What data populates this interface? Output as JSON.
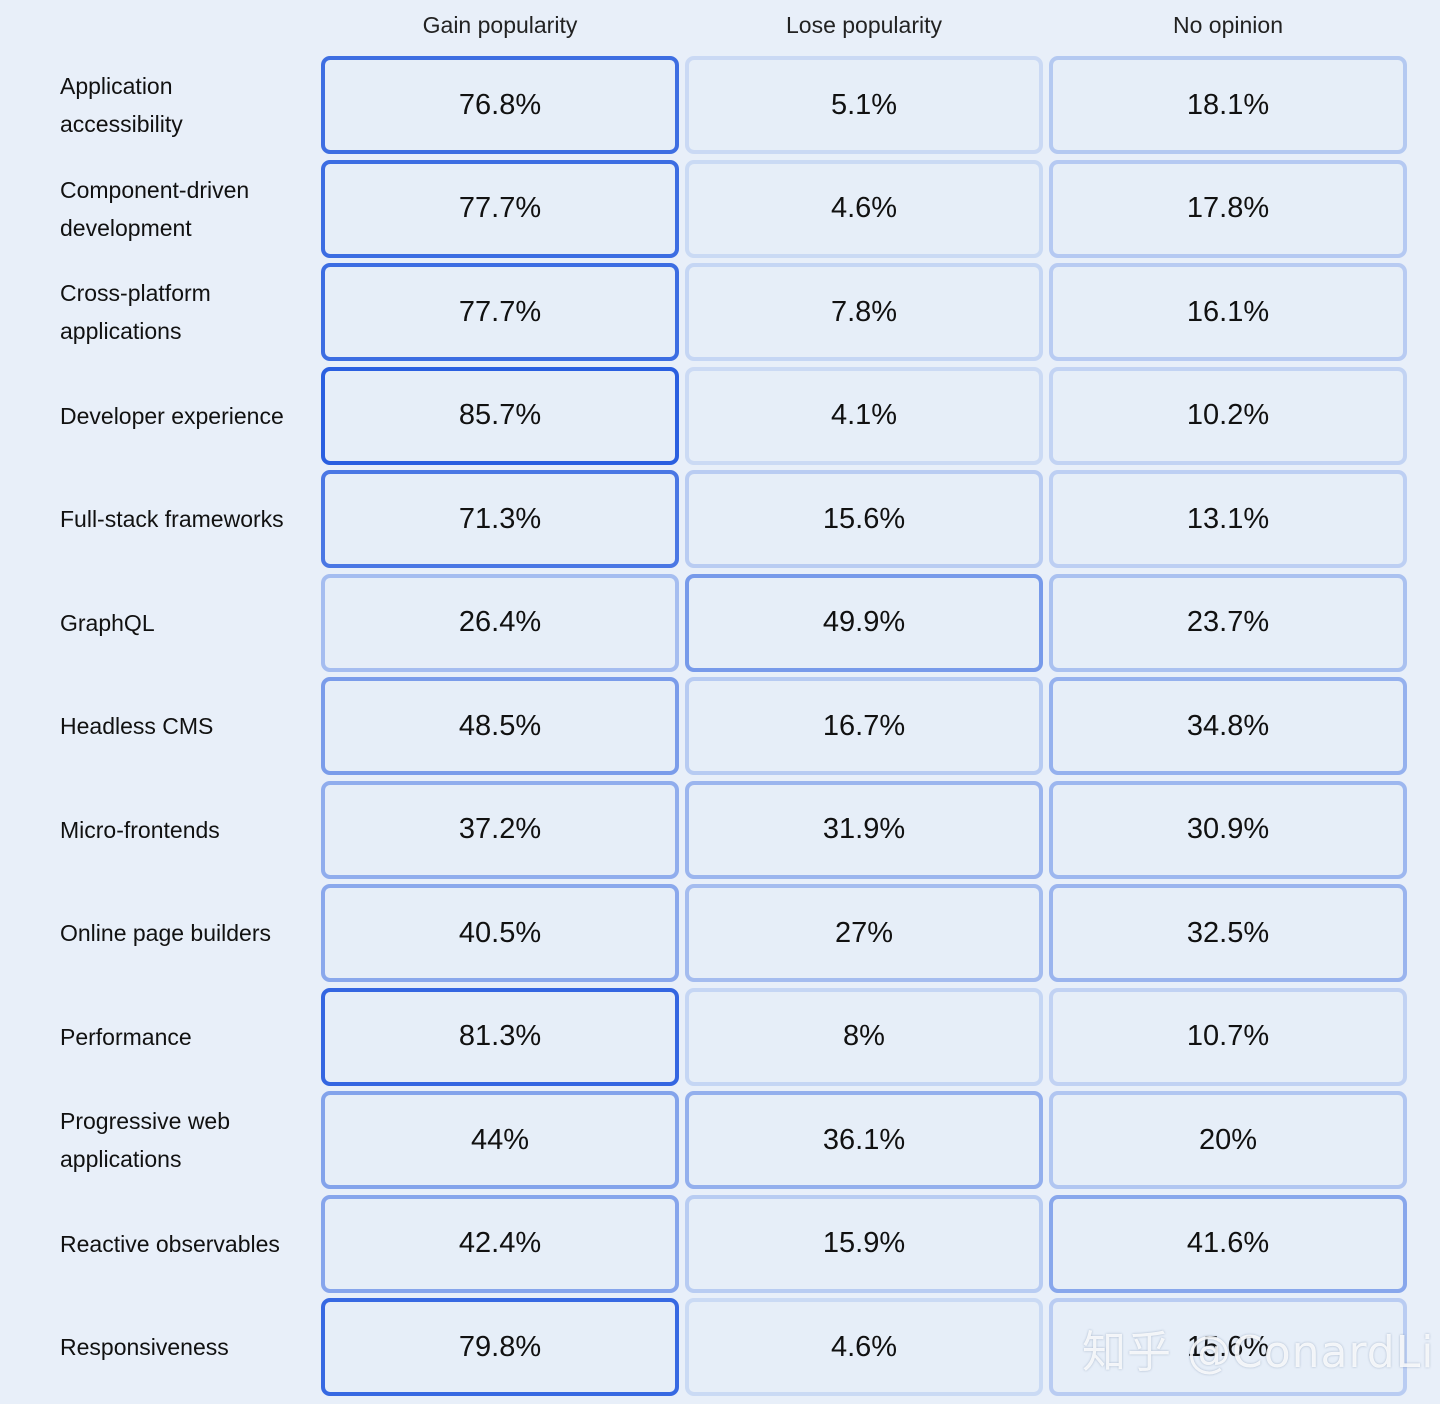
{
  "chart_data": {
    "type": "table",
    "columns": [
      "Gain popularity",
      "Lose popularity",
      "No opinion"
    ],
    "rows": [
      {
        "label": "Application accessibility",
        "values": [
          "76.8%",
          "5.1%",
          "18.1%"
        ],
        "numbers": [
          76.8,
          5.1,
          18.1
        ]
      },
      {
        "label": "Component-driven development",
        "values": [
          "77.7%",
          "4.6%",
          "17.8%"
        ],
        "numbers": [
          77.7,
          4.6,
          17.8
        ]
      },
      {
        "label": "Cross-platform applications",
        "values": [
          "77.7%",
          "7.8%",
          "16.1%"
        ],
        "numbers": [
          77.7,
          7.8,
          16.1
        ]
      },
      {
        "label": "Developer experience",
        "values": [
          "85.7%",
          "4.1%",
          "10.2%"
        ],
        "numbers": [
          85.7,
          4.1,
          10.2
        ]
      },
      {
        "label": "Full-stack frameworks",
        "values": [
          "71.3%",
          "15.6%",
          "13.1%"
        ],
        "numbers": [
          71.3,
          15.6,
          13.1
        ]
      },
      {
        "label": "GraphQL",
        "values": [
          "26.4%",
          "49.9%",
          "23.7%"
        ],
        "numbers": [
          26.4,
          49.9,
          23.7
        ]
      },
      {
        "label": "Headless CMS",
        "values": [
          "48.5%",
          "16.7%",
          "34.8%"
        ],
        "numbers": [
          48.5,
          16.7,
          34.8
        ]
      },
      {
        "label": "Micro-frontends",
        "values": [
          "37.2%",
          "31.9%",
          "30.9%"
        ],
        "numbers": [
          37.2,
          31.9,
          30.9
        ]
      },
      {
        "label": "Online page builders",
        "values": [
          "40.5%",
          "27%",
          "32.5%"
        ],
        "numbers": [
          40.5,
          27,
          32.5
        ]
      },
      {
        "label": "Performance",
        "values": [
          "81.3%",
          "8%",
          "10.7%"
        ],
        "numbers": [
          81.3,
          8,
          10.7
        ]
      },
      {
        "label": "Progressive web applications",
        "values": [
          "44%",
          "36.1%",
          "20%"
        ],
        "numbers": [
          44,
          36.1,
          20
        ]
      },
      {
        "label": "Reactive observables",
        "values": [
          "42.4%",
          "15.9%",
          "41.6%"
        ],
        "numbers": [
          42.4,
          15.9,
          41.6
        ]
      },
      {
        "label": "Responsiveness",
        "values": [
          "79.8%",
          "4.6%",
          "15.6%"
        ],
        "numbers": [
          79.8,
          4.6,
          15.6
        ]
      }
    ],
    "colors": {
      "low": "#d0def5",
      "high": "#2a5fe0",
      "cell_fill": "#e6eef8",
      "background": "#e8eff9"
    }
  },
  "watermark": "知乎 @ConardLi"
}
